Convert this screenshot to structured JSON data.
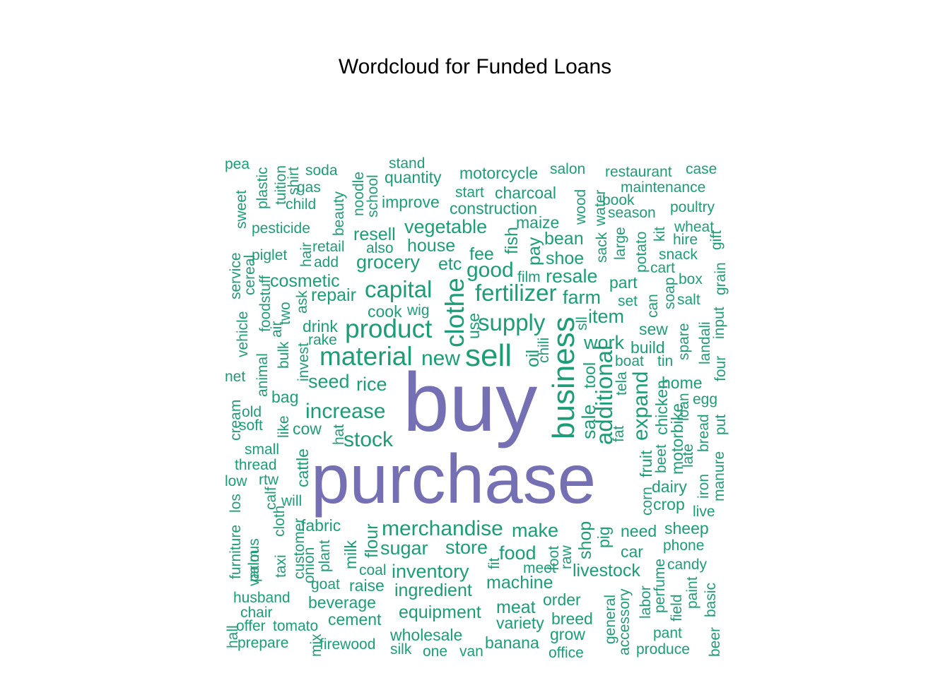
{
  "chart_data": {
    "type": "wordcloud",
    "title": "Wordcloud for Funded Loans",
    "colors": {
      "top": "#7570B3",
      "other": "#1B9E77"
    },
    "words": [
      {
        "text": "buy",
        "weight": 100
      },
      {
        "text": "purchase",
        "weight": 92
      },
      {
        "text": "business",
        "weight": 45
      },
      {
        "text": "sell",
        "weight": 40
      },
      {
        "text": "material",
        "weight": 35
      },
      {
        "text": "product",
        "weight": 35
      },
      {
        "text": "clothe",
        "weight": 33
      },
      {
        "text": "fertilizer",
        "weight": 32
      },
      {
        "text": "supply",
        "weight": 31
      },
      {
        "text": "capital",
        "weight": 31
      },
      {
        "text": "additional",
        "weight": 30
      },
      {
        "text": "increase",
        "weight": 29
      },
      {
        "text": "merchandise",
        "weight": 29
      },
      {
        "text": "expand",
        "weight": 28
      },
      {
        "text": "good",
        "weight": 28
      },
      {
        "text": "stock",
        "weight": 28
      },
      {
        "text": "new",
        "weight": 28
      },
      {
        "text": "sale",
        "weight": 27
      },
      {
        "text": "store",
        "weight": 27
      },
      {
        "text": "make",
        "weight": 27
      },
      {
        "text": "food",
        "weight": 27
      },
      {
        "text": "vegetable",
        "weight": 26
      },
      {
        "text": "sugar",
        "weight": 26
      },
      {
        "text": "inventory",
        "weight": 26
      },
      {
        "text": "grocery",
        "weight": 26
      },
      {
        "text": "rice",
        "weight": 26
      },
      {
        "text": "seed",
        "weight": 26
      },
      {
        "text": "work",
        "weight": 26
      },
      {
        "text": "item",
        "weight": 26
      },
      {
        "text": "farm",
        "weight": 26
      },
      {
        "text": "resale",
        "weight": 26
      },
      {
        "text": "fee",
        "weight": 25
      },
      {
        "text": "fish",
        "weight": 25
      },
      {
        "text": "pay",
        "weight": 25
      },
      {
        "text": "shop",
        "weight": 25
      },
      {
        "text": "machine",
        "weight": 25
      },
      {
        "text": "ingredient",
        "weight": 25
      },
      {
        "text": "equipment",
        "weight": 25
      },
      {
        "text": "oil",
        "weight": 25
      },
      {
        "text": "flour",
        "weight": 24
      },
      {
        "text": "livestock",
        "weight": 24
      },
      {
        "text": "meat",
        "weight": 24
      },
      {
        "text": "house",
        "weight": 24
      },
      {
        "text": "resell",
        "weight": 24
      },
      {
        "text": "etc",
        "weight": 24
      },
      {
        "text": "bean",
        "weight": 24
      },
      {
        "text": "shoe",
        "weight": 24
      },
      {
        "text": "repair",
        "weight": 24
      },
      {
        "text": "cosmetic",
        "weight": 24
      },
      {
        "text": "pig",
        "weight": 23
      },
      {
        "text": "use",
        "weight": 23
      },
      {
        "text": "tool",
        "weight": 22
      },
      {
        "text": "need",
        "weight": 23
      },
      {
        "text": "sheep",
        "weight": 23
      },
      {
        "text": "dairy",
        "weight": 23
      },
      {
        "text": "home",
        "weight": 23
      },
      {
        "text": "fabric",
        "weight": 23
      },
      {
        "text": "build",
        "weight": 23
      },
      {
        "text": "cow",
        "weight": 23
      },
      {
        "text": "bag",
        "weight": 23
      },
      {
        "text": "drink",
        "weight": 23
      },
      {
        "text": "part",
        "weight": 23
      },
      {
        "text": "improve",
        "weight": 23
      },
      {
        "text": "construction",
        "weight": 22
      },
      {
        "text": "chicken",
        "weight": 22
      },
      {
        "text": "motorbike",
        "weight": 22
      },
      {
        "text": "motorcycle",
        "weight": 22
      },
      {
        "text": "quantity",
        "weight": 22
      },
      {
        "text": "charcoal",
        "weight": 22
      },
      {
        "text": "cook",
        "weight": 22
      },
      {
        "text": "order",
        "weight": 22
      },
      {
        "text": "grow",
        "weight": 22
      },
      {
        "text": "breed",
        "weight": 22
      },
      {
        "text": "cattle",
        "weight": 22
      },
      {
        "text": "crop",
        "weight": 22
      },
      {
        "text": "fruit",
        "weight": 22
      },
      {
        "text": "beverage",
        "weight": 22
      },
      {
        "text": "wholesale",
        "weight": 22
      },
      {
        "text": "sew",
        "weight": 22
      },
      {
        "text": "car",
        "weight": 22
      },
      {
        "text": "raise",
        "weight": 22
      },
      {
        "text": "milk",
        "weight": 22
      },
      {
        "text": "maize",
        "weight": 22
      },
      {
        "text": "cement",
        "weight": 22
      },
      {
        "text": "variety",
        "weight": 22
      },
      {
        "text": "banana",
        "weight": 22
      },
      {
        "text": "accessory",
        "weight": 21
      },
      {
        "text": "general",
        "weight": 21
      },
      {
        "text": "perfume",
        "weight": 21
      },
      {
        "text": "corn",
        "weight": 21
      },
      {
        "text": "egg",
        "weight": 21
      },
      {
        "text": "husband",
        "weight": 21
      },
      {
        "text": "water",
        "weight": 21
      },
      {
        "text": "sack",
        "weight": 21
      },
      {
        "text": "wood",
        "weight": 21
      },
      {
        "text": "large",
        "weight": 21
      },
      {
        "text": "potato",
        "weight": 21
      },
      {
        "text": "plant",
        "weight": 21
      },
      {
        "text": "various",
        "weight": 21
      },
      {
        "text": "customer",
        "weight": 21
      },
      {
        "text": "invest",
        "weight": 21
      },
      {
        "text": "bulk",
        "weight": 21
      },
      {
        "text": "foodstuff",
        "weight": 21
      },
      {
        "text": "school",
        "weight": 21
      },
      {
        "text": "noodle",
        "weight": 21
      },
      {
        "text": "beauty",
        "weight": 21
      },
      {
        "text": "retail",
        "weight": 21
      },
      {
        "text": "add",
        "weight": 21
      },
      {
        "text": "also",
        "weight": 21
      },
      {
        "text": "piglet",
        "weight": 21
      },
      {
        "text": "pesticide",
        "weight": 21
      },
      {
        "text": "soda",
        "weight": 21
      },
      {
        "text": "gas",
        "weight": 21
      },
      {
        "text": "child",
        "weight": 21
      },
      {
        "text": "stand",
        "weight": 21
      },
      {
        "text": "start",
        "weight": 21
      },
      {
        "text": "salon",
        "weight": 21
      },
      {
        "text": "restaurant",
        "weight": 21
      },
      {
        "text": "case",
        "weight": 21
      },
      {
        "text": "maintenance",
        "weight": 21
      },
      {
        "text": "book",
        "weight": 21
      },
      {
        "text": "season",
        "weight": 21
      },
      {
        "text": "poultry",
        "weight": 21
      },
      {
        "text": "wheat",
        "weight": 21
      },
      {
        "text": "kit",
        "weight": 21
      },
      {
        "text": "hire",
        "weight": 21
      },
      {
        "text": "snack",
        "weight": 21
      },
      {
        "text": "gift",
        "weight": 21
      },
      {
        "text": "grain",
        "weight": 21
      },
      {
        "text": "cart",
        "weight": 21
      },
      {
        "text": "box",
        "weight": 21
      },
      {
        "text": "soap",
        "weight": 21
      },
      {
        "text": "salt",
        "weight": 21
      },
      {
        "text": "input",
        "weight": 21
      },
      {
        "text": "spare",
        "weight": 21
      },
      {
        "text": "landali",
        "weight": 21
      },
      {
        "text": "four",
        "weight": 21
      },
      {
        "text": "tin",
        "weight": 21
      },
      {
        "text": "loan",
        "weight": 21
      },
      {
        "text": "put",
        "weight": 21
      },
      {
        "text": "bread",
        "weight": 21
      },
      {
        "text": "manure",
        "weight": 21
      },
      {
        "text": "late",
        "weight": 21
      },
      {
        "text": "iron",
        "weight": 21
      },
      {
        "text": "beet",
        "weight": 21
      },
      {
        "text": "live",
        "weight": 21
      },
      {
        "text": "phone",
        "weight": 21
      },
      {
        "text": "candy",
        "weight": 21
      },
      {
        "text": "paint",
        "weight": 21
      },
      {
        "text": "field",
        "weight": 21
      },
      {
        "text": "basic",
        "weight": 21
      },
      {
        "text": "labor",
        "weight": 21
      },
      {
        "text": "pant",
        "weight": 21
      },
      {
        "text": "produce",
        "weight": 21
      },
      {
        "text": "beer",
        "weight": 21
      },
      {
        "text": "boat",
        "weight": 21
      },
      {
        "text": "can",
        "weight": 21
      },
      {
        "text": "set",
        "weight": 21
      },
      {
        "text": "tela",
        "weight": 21
      },
      {
        "text": "fat",
        "weight": 21
      },
      {
        "text": "sll",
        "weight": 21
      },
      {
        "text": "chili",
        "weight": 21
      },
      {
        "text": "film",
        "weight": 21
      },
      {
        "text": "raw",
        "weight": 21
      },
      {
        "text": "foot",
        "weight": 21
      },
      {
        "text": "fit",
        "weight": 21
      },
      {
        "text": "meet",
        "weight": 21
      },
      {
        "text": "coal",
        "weight": 21
      },
      {
        "text": "goat",
        "weight": 21
      },
      {
        "text": "onion",
        "weight": 21
      },
      {
        "text": "taxi",
        "weight": 21
      },
      {
        "text": "cloth",
        "weight": 21
      },
      {
        "text": "calf",
        "weight": 21
      },
      {
        "text": "will",
        "weight": 21
      },
      {
        "text": "rtw",
        "weight": 21
      },
      {
        "text": "los",
        "weight": 21
      },
      {
        "text": "furniture",
        "weight": 21
      },
      {
        "text": "palm",
        "weight": 21
      },
      {
        "text": "chair",
        "weight": 21
      },
      {
        "text": "hall",
        "weight": 21
      },
      {
        "text": "offer",
        "weight": 21
      },
      {
        "text": "tomato",
        "weight": 21
      },
      {
        "text": "prepare",
        "weight": 21
      },
      {
        "text": "mix",
        "weight": 21
      },
      {
        "text": "firewood",
        "weight": 21
      },
      {
        "text": "silk",
        "weight": 21
      },
      {
        "text": "one",
        "weight": 21
      },
      {
        "text": "van",
        "weight": 21
      },
      {
        "text": "office",
        "weight": 21
      },
      {
        "text": "low",
        "weight": 21
      },
      {
        "text": "thread",
        "weight": 21
      },
      {
        "text": "small",
        "weight": 21
      },
      {
        "text": "soft",
        "weight": 21
      },
      {
        "text": "old",
        "weight": 21
      },
      {
        "text": "cream",
        "weight": 21
      },
      {
        "text": "like",
        "weight": 21
      },
      {
        "text": "hat",
        "weight": 21
      },
      {
        "text": "net",
        "weight": 21
      },
      {
        "text": "animal",
        "weight": 21
      },
      {
        "text": "vehicle",
        "weight": 21
      },
      {
        "text": "service",
        "weight": 21
      },
      {
        "text": "cereal",
        "weight": 21
      },
      {
        "text": "ask",
        "weight": 21
      },
      {
        "text": "two",
        "weight": 21
      },
      {
        "text": "air",
        "weight": 21
      },
      {
        "text": "rake",
        "weight": 21
      },
      {
        "text": "wig",
        "weight": 21
      },
      {
        "text": "hair",
        "weight": 21
      },
      {
        "text": "sweet",
        "weight": 21
      },
      {
        "text": "plastic",
        "weight": 21
      },
      {
        "text": "tuition",
        "weight": 21
      },
      {
        "text": "shirt",
        "weight": 21
      },
      {
        "text": "pea",
        "weight": 21
      }
    ]
  }
}
